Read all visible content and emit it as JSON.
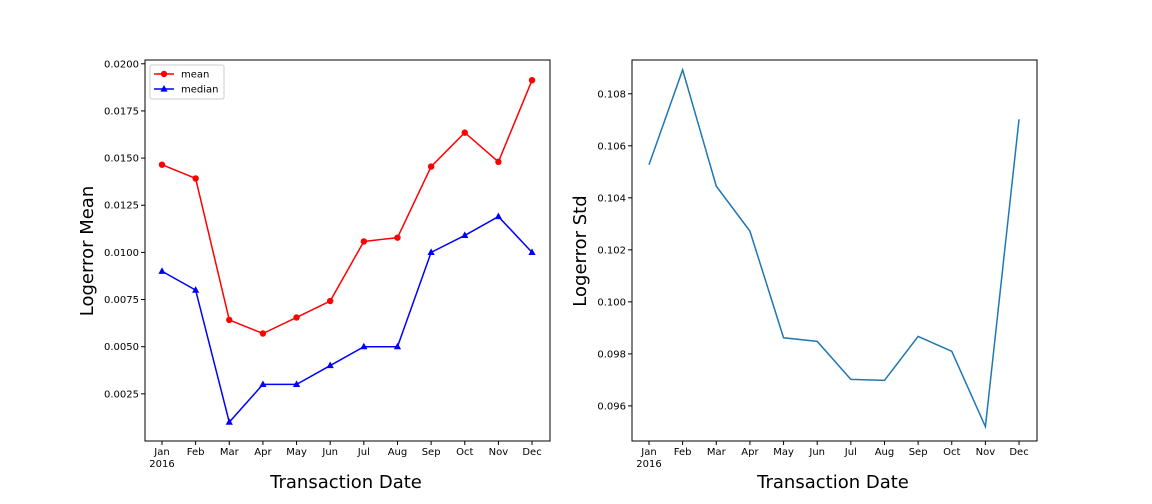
{
  "chart_data": [
    {
      "type": "line",
      "categories": [
        "Jan",
        "Feb",
        "Mar",
        "Apr",
        "May",
        "Jun",
        "Jul",
        "Aug",
        "Sep",
        "Oct",
        "Nov",
        "Dec"
      ],
      "year_label": "2016",
      "xlabel": "Transaction Date",
      "ylabel": "Logerror Mean",
      "ylim": [
        0.0,
        0.0202
      ],
      "yticks": [
        "0.0025",
        "0.0050",
        "0.0075",
        "0.0100",
        "0.0125",
        "0.0150",
        "0.0175",
        "0.0200"
      ],
      "legend_position": "upper-left",
      "grid": false,
      "series": [
        {
          "name": "mean",
          "color": "#ff0000",
          "marker": "circle",
          "values": [
            0.01465,
            0.01392,
            0.00642,
            0.0057,
            0.00655,
            0.00742,
            0.01058,
            0.01078,
            0.01455,
            0.01635,
            0.0148,
            0.01913
          ]
        },
        {
          "name": "median",
          "color": "#0000ff",
          "marker": "triangle",
          "values": [
            0.009,
            0.008,
            0.001,
            0.003,
            0.003,
            0.004,
            0.005,
            0.005,
            0.01,
            0.0109,
            0.0119,
            0.01
          ]
        }
      ]
    },
    {
      "type": "line",
      "categories": [
        "Jan",
        "Feb",
        "Mar",
        "Apr",
        "May",
        "Jun",
        "Jul",
        "Aug",
        "Sep",
        "Oct",
        "Nov",
        "Dec"
      ],
      "year_label": "2016",
      "xlabel": "Transaction Date",
      "ylabel": "Logerror Std",
      "ylim": [
        0.09465,
        0.1093
      ],
      "yticks": [
        "0.096",
        "0.098",
        "0.100",
        "0.102",
        "0.104",
        "0.106",
        "0.108"
      ],
      "grid": false,
      "series": [
        {
          "color": "#1f77b4",
          "values": [
            0.10527,
            0.10892,
            0.10445,
            0.10272,
            0.09862,
            0.09848,
            0.09702,
            0.09698,
            0.09867,
            0.0981,
            0.0952,
            0.10702
          ]
        }
      ]
    }
  ]
}
